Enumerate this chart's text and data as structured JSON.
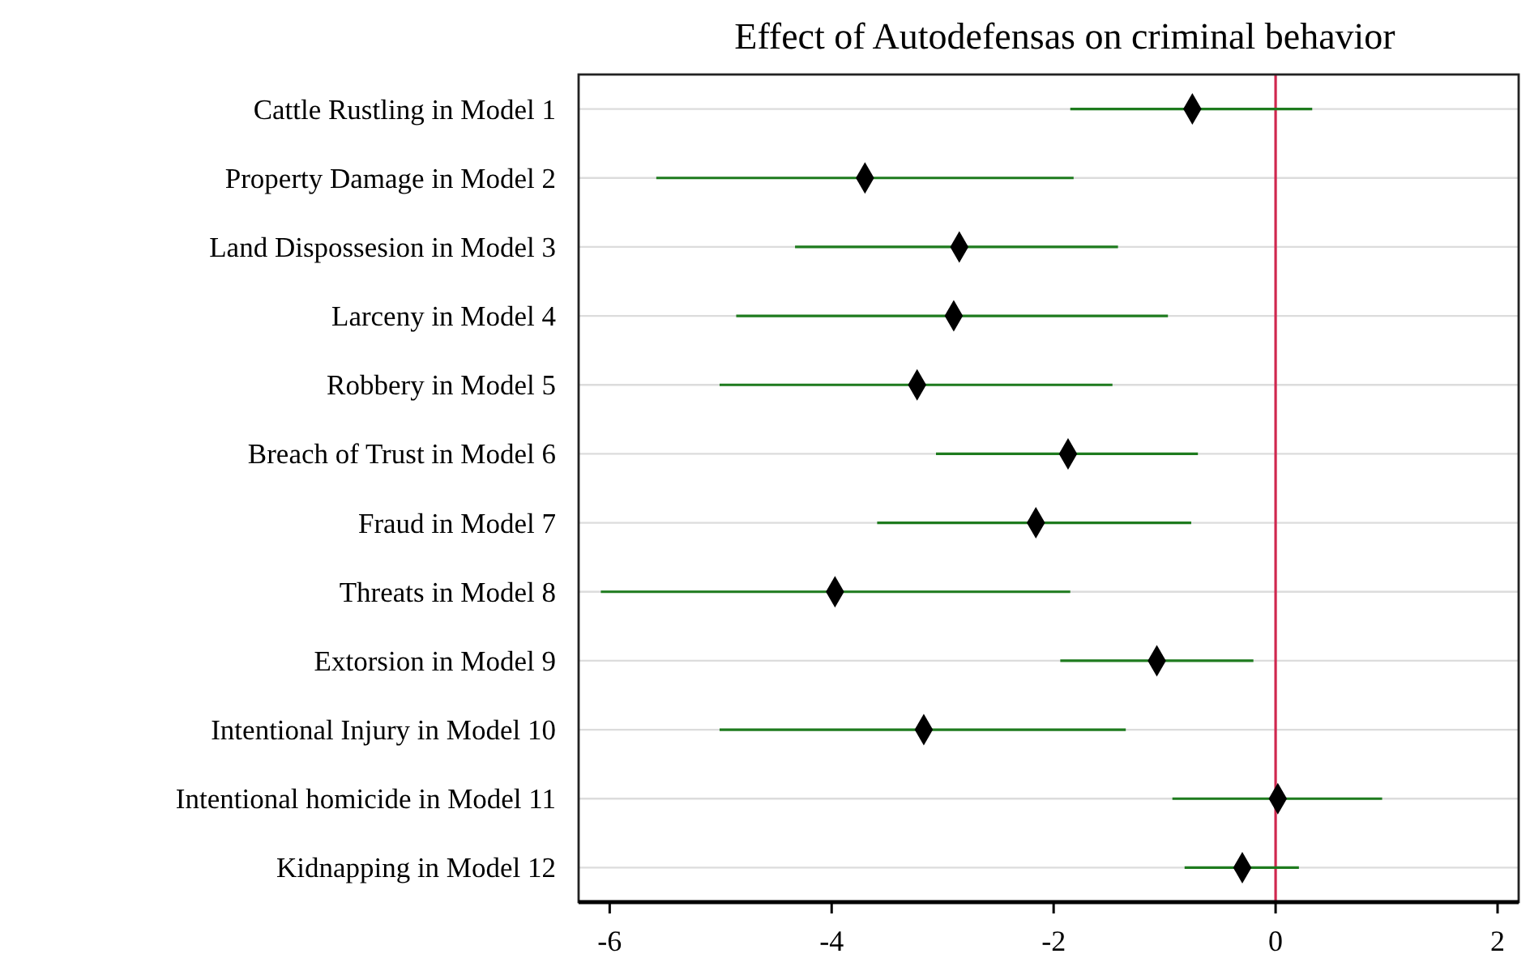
{
  "chart_data": {
    "type": "scatter",
    "title": "Effect of Autodefensas on criminal behavior",
    "orientation": "horizontal",
    "categories": [
      "Cattle Rustling in Model 1",
      "Property Damage in Model 2",
      "Land Dispossesion in Model 3",
      "Larceny in Model 4",
      "Robbery in Model 5",
      "Breach of Trust in Model 6",
      "Fraud in Model 7",
      "Threats in Model 8",
      "Extorsion in Model 9",
      "Intentional Injury in Model 10",
      "Intentional homicide in Model 11",
      "Kidnapping in Model 12"
    ],
    "series": [
      {
        "color": "#000000",
        "values": [
          -0.75,
          -3.7,
          -2.85,
          -2.9,
          -3.23,
          -1.87,
          -2.16,
          -3.97,
          -1.07,
          -3.17,
          0.02,
          -0.3
        ],
        "errors": [
          [
            -1.85,
            0.33
          ],
          [
            -5.58,
            -1.82
          ],
          [
            -4.33,
            -1.42
          ],
          [
            -4.86,
            -0.97
          ],
          [
            -5.01,
            -1.47
          ],
          [
            -3.06,
            -0.7
          ],
          [
            -3.59,
            -0.76
          ],
          [
            -6.08,
            -1.85
          ],
          [
            -1.94,
            -0.2
          ],
          [
            -5.01,
            -1.35
          ],
          [
            -0.93,
            0.96
          ],
          [
            -0.82,
            0.21
          ]
        ]
      }
    ],
    "xlim": [
      -6.28,
      2.19
    ],
    "xticks": [
      -6,
      -4,
      -2,
      0,
      2
    ],
    "grid": "y",
    "marker": "diamond",
    "ref_lines": [
      {
        "axis": "x",
        "value": 0,
        "color": "#d0284f"
      }
    ]
  }
}
